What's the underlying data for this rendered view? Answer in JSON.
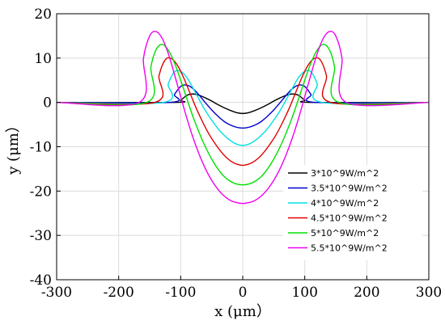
{
  "chart_data": {
    "type": "line",
    "title": "",
    "xlabel": "x (μm）",
    "ylabel": "y (μm）",
    "xlim": [
      -300,
      300
    ],
    "ylim": [
      -40,
      20
    ],
    "xticks": [
      -300,
      -200,
      -100,
      0,
      100,
      200,
      300
    ],
    "yticks": [
      -40,
      -30,
      -20,
      -10,
      0,
      10,
      20
    ],
    "xtick_labels": [
      "-300",
      "-200",
      "-100",
      "0",
      "100",
      "200",
      "300"
    ],
    "ytick_labels": [
      "-40",
      "-30",
      "-20",
      "-10",
      "0",
      "10",
      "20"
    ],
    "grid": true,
    "legend_position": "lower-right",
    "series": [
      {
        "name": "3*10^9W/m^2",
        "color": "#000000",
        "x": [
          -300,
          -110,
          -100,
          -90,
          -80,
          -70,
          -60,
          -50,
          -40,
          -30,
          -20,
          -10,
          0,
          10,
          20,
          30,
          40,
          50,
          60,
          70,
          80,
          90,
          100,
          110,
          300
        ],
        "y": [
          0,
          0,
          0.5,
          1.6,
          1.9,
          1.6,
          1.0,
          0.3,
          -0.5,
          -1.2,
          -1.8,
          -2.3,
          -2.5,
          -2.3,
          -1.8,
          -1.2,
          -0.5,
          0.3,
          1.0,
          1.6,
          1.9,
          1.6,
          0.5,
          0,
          0
        ]
      },
      {
        "name": "3.5*10^9W/m^2",
        "color": "#0000d0",
        "x": [
          -300,
          -118,
          -110,
          -100,
          -90,
          -80,
          -70,
          -60,
          -50,
          -40,
          -30,
          -20,
          -10,
          0,
          10,
          20,
          30,
          40,
          50,
          60,
          70,
          80,
          90,
          100,
          110,
          118,
          300
        ],
        "y": [
          0,
          0,
          1.8,
          3.6,
          3.9,
          3.1,
          1.6,
          -0.1,
          -1.7,
          -3.1,
          -4.3,
          -5.1,
          -5.6,
          -5.8,
          -5.6,
          -5.1,
          -4.3,
          -3.1,
          -1.7,
          -0.1,
          1.6,
          3.1,
          3.9,
          3.6,
          1.8,
          0,
          0
        ]
      },
      {
        "name": "4*10^9W/m^2",
        "color": "#00e0e0",
        "x": [
          -300,
          -128,
          -120,
          -110,
          -100,
          -90,
          -80,
          -70,
          -60,
          -50,
          -40,
          -30,
          -20,
          -10,
          0,
          10,
          20,
          30,
          40,
          50,
          60,
          70,
          80,
          90,
          100,
          110,
          120,
          128,
          300
        ],
        "y": [
          0,
          0,
          4.2,
          6.9,
          7.0,
          5.6,
          3.2,
          0.6,
          -1.9,
          -4.0,
          -5.9,
          -7.4,
          -8.6,
          -9.4,
          -9.7,
          -9.4,
          -8.6,
          -7.4,
          -5.9,
          -4.0,
          -1.9,
          0.6,
          3.2,
          5.6,
          7.0,
          6.9,
          4.2,
          0,
          0
        ]
      },
      {
        "name": "4.5*10^9W/m^2",
        "color": "#e00000",
        "x": [
          -300,
          -142,
          -135,
          -125,
          -115,
          -105,
          -95,
          -85,
          -75,
          -65,
          -55,
          -45,
          -35,
          -25,
          -15,
          -5,
          0,
          5,
          15,
          25,
          35,
          45,
          55,
          65,
          75,
          85,
          95,
          105,
          115,
          125,
          135,
          142,
          300
        ],
        "y": [
          0,
          0,
          6.0,
          9.6,
          9.9,
          8.3,
          5.5,
          2.1,
          -1.3,
          -4.3,
          -7.0,
          -9.2,
          -11.1,
          -12.6,
          -13.6,
          -14.1,
          -14.2,
          -14.1,
          -13.6,
          -12.6,
          -11.1,
          -9.2,
          -7.0,
          -4.3,
          -1.3,
          2.1,
          5.5,
          8.3,
          9.9,
          9.6,
          6.0,
          0,
          0
        ]
      },
      {
        "name": "5*10^9W/m^2",
        "color": "#00e000",
        "x": [
          -300,
          -155,
          -148,
          -140,
          -130,
          -120,
          -110,
          -100,
          -90,
          -80,
          -70,
          -60,
          -50,
          -40,
          -30,
          -20,
          -10,
          0,
          10,
          20,
          30,
          40,
          50,
          60,
          70,
          80,
          90,
          100,
          110,
          120,
          130,
          140,
          148,
          155,
          300
        ],
        "y": [
          0,
          0,
          8.0,
          11.8,
          13.1,
          11.8,
          8.9,
          5.0,
          0.8,
          -3.3,
          -6.9,
          -10.1,
          -12.8,
          -15.0,
          -16.7,
          -17.8,
          -18.4,
          -18.6,
          -18.4,
          -17.8,
          -16.7,
          -15.0,
          -12.8,
          -10.1,
          -6.9,
          -3.3,
          0.8,
          5.0,
          8.9,
          11.8,
          13.1,
          11.8,
          8.0,
          0,
          0
        ]
      },
      {
        "name": "5.5*10^9W/m^2",
        "color": "#f000f0",
        "x": [
          -300,
          -167,
          -160,
          -150,
          -140,
          -130,
          -120,
          -110,
          -100,
          -90,
          -80,
          -70,
          -60,
          -50,
          -40,
          -30,
          -20,
          -10,
          0,
          10,
          20,
          30,
          40,
          50,
          60,
          70,
          80,
          90,
          100,
          110,
          120,
          130,
          140,
          150,
          160,
          167,
          300
        ],
        "y": [
          0,
          0,
          10.0,
          15.0,
          16.0,
          14.5,
          11.0,
          6.3,
          1.3,
          -3.6,
          -8.0,
          -11.8,
          -15.0,
          -17.6,
          -19.6,
          -21.1,
          -22.1,
          -22.6,
          -22.8,
          -22.6,
          -22.1,
          -21.1,
          -19.6,
          -17.6,
          -15.0,
          -11.8,
          -8.0,
          -3.6,
          1.3,
          6.3,
          11.0,
          14.5,
          16.0,
          15.0,
          10.0,
          0,
          0
        ]
      }
    ]
  }
}
